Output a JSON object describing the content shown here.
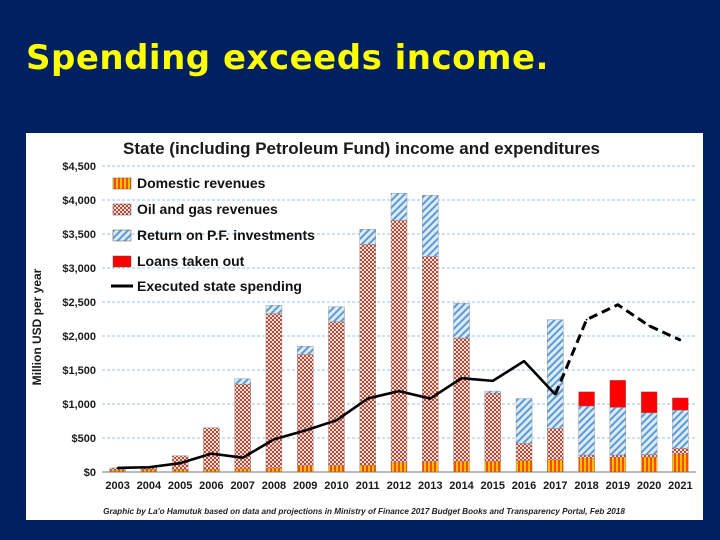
{
  "slide": {
    "title": "Spending exceeds income."
  },
  "colors": {
    "background": "#002060",
    "title": "#ffff00",
    "domestic": "#ff9900",
    "oil_gas": "#b84a38",
    "return_pf": "#5b9bd5",
    "loans": "#ff0000",
    "spending": "#000000"
  },
  "chart_data": {
    "type": "bar",
    "title": "State (including Petroleum Fund) income and expenditures",
    "ylabel": "Million USD per year",
    "xlabel": "",
    "ylim": [
      0,
      4500
    ],
    "yticks": [
      0,
      500,
      1000,
      1500,
      2000,
      2500,
      3000,
      3500,
      4000,
      4500
    ],
    "ytick_labels": [
      "$0",
      "$500",
      "$1,000",
      "$1,500",
      "$2,000",
      "$2,500",
      "$3,000",
      "$3,500",
      "$4,000",
      "$4,500"
    ],
    "categories": [
      "2003",
      "2004",
      "2005",
      "2006",
      "2007",
      "2008",
      "2009",
      "2010",
      "2011",
      "2012",
      "2013",
      "2014",
      "2015",
      "2016",
      "2017",
      "2018",
      "2019",
      "2020",
      "2021"
    ],
    "series": [
      {
        "name": "Domestic revenues",
        "kind": "bar",
        "values": [
          30,
          40,
          40,
          40,
          50,
          60,
          90,
          90,
          100,
          140,
          150,
          160,
          160,
          170,
          180,
          200,
          210,
          220,
          260
        ]
      },
      {
        "name": "Oil and gas revenues",
        "kind": "bar",
        "values": [
          30,
          40,
          200,
          610,
          1240,
          2270,
          1640,
          2120,
          3250,
          3560,
          3020,
          1810,
          1000,
          250,
          460,
          50,
          40,
          40,
          90
        ]
      },
      {
        "name": "Return on P.F. investments",
        "kind": "bar",
        "values": [
          0,
          0,
          0,
          0,
          80,
          120,
          120,
          220,
          220,
          400,
          900,
          510,
          30,
          660,
          1600,
          720,
          700,
          610,
          560
        ]
      },
      {
        "name": "Loans taken out",
        "kind": "bar",
        "values": [
          0,
          0,
          0,
          0,
          0,
          0,
          0,
          0,
          0,
          0,
          0,
          0,
          0,
          0,
          0,
          210,
          400,
          310,
          180
        ]
      },
      {
        "name": "Executed state spending",
        "kind": "line",
        "values": [
          60,
          70,
          130,
          270,
          210,
          480,
          610,
          760,
          1080,
          1190,
          1080,
          1380,
          1340,
          1630,
          1140,
          2240,
          2460,
          2150,
          1940
        ],
        "projected_from": "2017"
      }
    ],
    "legend": [
      "Domestic revenues",
      "Oil and gas revenues",
      "Return on P.F. investments",
      "Loans taken out",
      "Executed state spending"
    ],
    "legend_position": "top-left",
    "grid": true,
    "source_note": "Graphic by La'o Hamutuk based on data and projections in Ministry of Finance 2017 Budget Books and Transparency Portal, Feb 2018"
  }
}
